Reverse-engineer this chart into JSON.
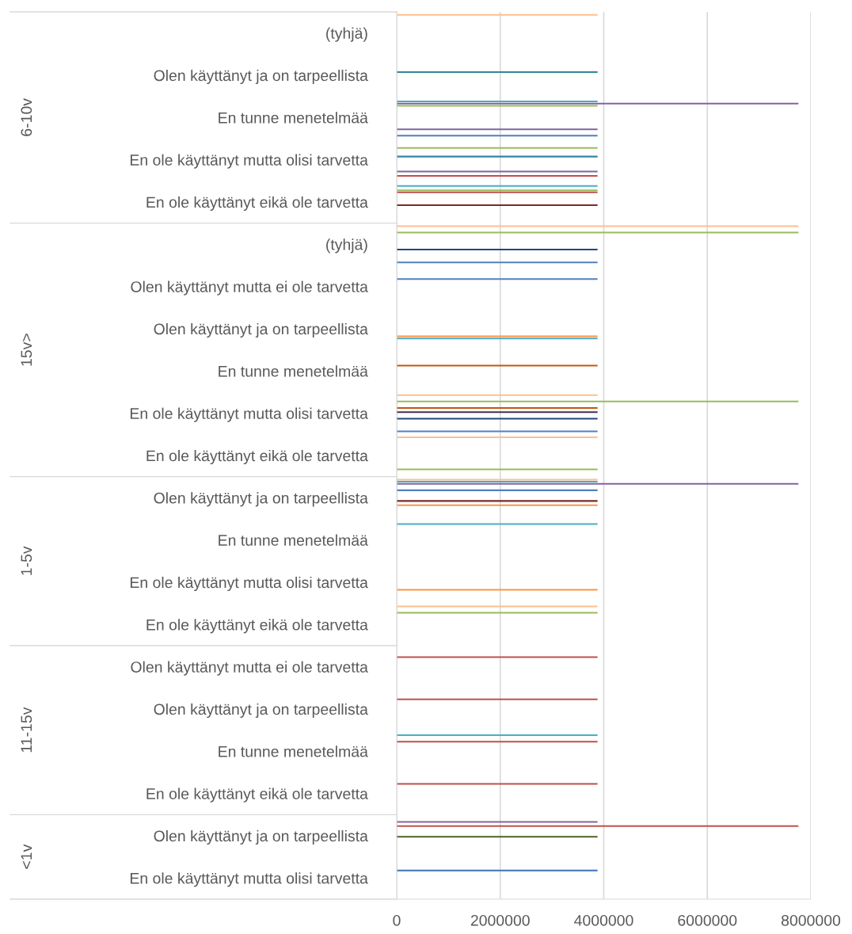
{
  "chart_data": {
    "type": "bar",
    "orientation": "horizontal",
    "categories": [
      "(tyhjä)",
      "Olen käyttänyt ja on tarpeellista",
      "En tunne menetelmää",
      "En ole käyttänyt mutta olisi tarvetta",
      "En ole käyttänyt eikä ole tarvetta",
      "(tyhjä)",
      "Olen käyttänyt mutta ei ole tarvetta",
      "Olen käyttänyt ja on tarpeellista",
      "En tunne menetelmää",
      "En ole käyttänyt mutta olisi tarvetta",
      "En ole käyttänyt eikä ole tarvetta",
      "Olen käyttänyt ja on tarpeellista",
      "En tunne menetelmää",
      "En ole käyttänyt mutta olisi tarvetta",
      "En ole käyttänyt eikä ole tarvetta",
      "Olen käyttänyt mutta ei ole tarvetta",
      "Olen käyttänyt ja on tarpeellista",
      "En tunne menetelmää",
      "En ole käyttänyt eikä ole tarvetta",
      "Olen käyttänyt ja on tarpeellista",
      "En ole käyttänyt mutta olisi tarvetta"
    ],
    "series": [
      {
        "color": "#fac090",
        "values": [
          3880000,
          null,
          null,
          null,
          null,
          7760000,
          null,
          null,
          null,
          3880000,
          3880000,
          3880000,
          null,
          null,
          3880000,
          null,
          null,
          null,
          null,
          null,
          null
        ]
      },
      {
        "color": "#4bacc6",
        "values": [
          null,
          null,
          3880000,
          null,
          3880000,
          null,
          null,
          null,
          null,
          null,
          null,
          3880000,
          3880000,
          null,
          null,
          null,
          null,
          3880000,
          null,
          null,
          null
        ]
      },
      {
        "color": "#8064a2",
        "values": [
          null,
          null,
          7760000,
          null,
          null,
          null,
          null,
          null,
          null,
          null,
          null,
          7760000,
          null,
          null,
          null,
          null,
          null,
          null,
          null,
          3880000,
          null
        ]
      },
      {
        "color": "#9bbb59",
        "values": [
          null,
          null,
          3880000,
          3880000,
          3880000,
          7760000,
          null,
          null,
          null,
          7760000,
          null,
          null,
          null,
          null,
          3880000,
          null,
          null,
          null,
          null,
          null,
          null
        ]
      },
      {
        "color": "#c0504d",
        "values": [
          null,
          null,
          null,
          null,
          3880000,
          null,
          null,
          null,
          null,
          null,
          null,
          null,
          null,
          null,
          null,
          3880000,
          3880000,
          3880000,
          3880000,
          7760000,
          null
        ]
      },
      {
        "color": "#4f81bd",
        "values": [
          null,
          null,
          null,
          null,
          null,
          null,
          3880000,
          null,
          null,
          null,
          null,
          3880000,
          null,
          null,
          null,
          null,
          null,
          null,
          null,
          null,
          3880000
        ]
      },
      {
        "color": "#c0580c",
        "values": [
          null,
          null,
          null,
          null,
          null,
          null,
          null,
          null,
          3880000,
          3880000,
          null,
          null,
          null,
          null,
          null,
          null,
          null,
          null,
          null,
          null,
          null
        ]
      },
      {
        "color": "#31859c",
        "values": [
          null,
          3880000,
          null,
          3880000,
          null,
          null,
          null,
          null,
          null,
          null,
          null,
          null,
          null,
          null,
          null,
          null,
          null,
          null,
          null,
          null,
          null
        ]
      },
      {
        "color": "#403151",
        "values": [
          null,
          null,
          null,
          null,
          null,
          null,
          null,
          null,
          null,
          3880000,
          null,
          null,
          null,
          null,
          null,
          null,
          null,
          null,
          null,
          null,
          null
        ]
      },
      {
        "color": "#4f6228",
        "values": [
          null,
          null,
          null,
          null,
          null,
          null,
          null,
          null,
          null,
          null,
          null,
          null,
          null,
          null,
          null,
          null,
          null,
          null,
          null,
          3880000,
          null
        ]
      },
      {
        "color": "#772c2a",
        "values": [
          null,
          null,
          null,
          null,
          3880000,
          null,
          null,
          null,
          null,
          null,
          null,
          3880000,
          null,
          null,
          null,
          null,
          null,
          null,
          null,
          null,
          null
        ]
      },
      {
        "color": "#1f497d",
        "values": [
          null,
          null,
          null,
          null,
          null,
          3880000,
          null,
          null,
          null,
          3880000,
          null,
          null,
          null,
          null,
          null,
          null,
          null,
          null,
          null,
          null,
          null
        ]
      },
      {
        "color": "#f79646",
        "values": [
          null,
          null,
          null,
          null,
          null,
          null,
          null,
          3880000,
          null,
          null,
          null,
          3880000,
          null,
          3880000,
          null,
          null,
          null,
          null,
          null,
          null,
          null
        ]
      },
      {
        "color": "#4bacc6",
        "values": [
          null,
          null,
          null,
          null,
          null,
          null,
          null,
          3880000,
          null,
          null,
          null,
          null,
          null,
          null,
          null,
          null,
          null,
          null,
          null,
          null,
          null
        ]
      },
      {
        "color": "#8064a2",
        "values": [
          null,
          null,
          3880000,
          3880000,
          null,
          null,
          null,
          null,
          null,
          null,
          null,
          null,
          null,
          null,
          null,
          null,
          null,
          null,
          null,
          null,
          null
        ]
      },
      {
        "color": "#9bbb59",
        "values": [
          null,
          null,
          null,
          null,
          null,
          null,
          null,
          null,
          null,
          null,
          3880000,
          null,
          null,
          null,
          null,
          null,
          null,
          null,
          null,
          null,
          null
        ]
      },
      {
        "color": "#c0504d",
        "values": [
          null,
          null,
          null,
          3880000,
          null,
          null,
          null,
          null,
          null,
          null,
          null,
          null,
          null,
          null,
          null,
          null,
          null,
          null,
          null,
          null,
          null
        ]
      },
      {
        "color": "#4f81bd",
        "values": [
          null,
          null,
          3880000,
          null,
          null,
          3880000,
          null,
          null,
          null,
          3880000,
          null,
          null,
          null,
          null,
          null,
          null,
          null,
          null,
          null,
          null,
          null
        ]
      }
    ],
    "annotations": [
      "6-10v",
      "15v>",
      "1-5v",
      "11-15v",
      "<1v"
    ],
    "xlim": [
      0,
      8000000
    ],
    "xticks": [
      0,
      2000000,
      4000000,
      6000000,
      8000000
    ],
    "grid": "x",
    "legend": false
  }
}
